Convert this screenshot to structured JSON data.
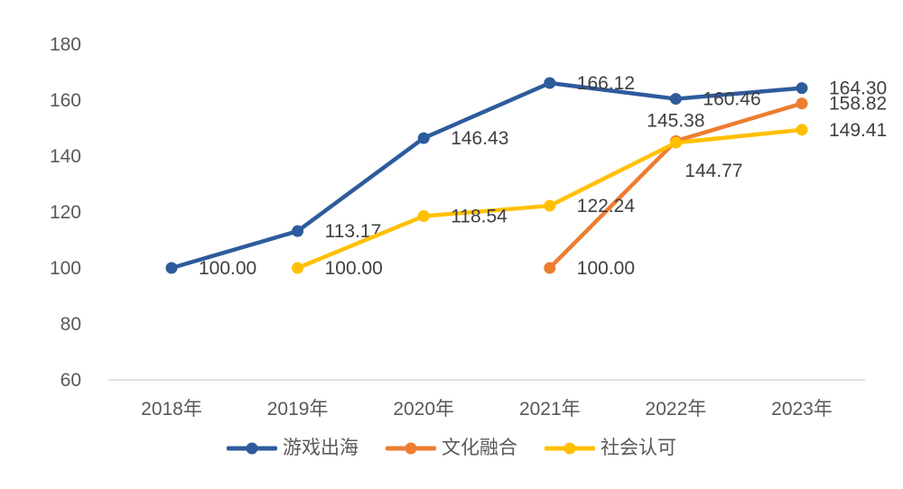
{
  "chart_data": {
    "type": "line",
    "title": "",
    "xlabel": "",
    "ylabel": "",
    "categories": [
      "2018年",
      "2019年",
      "2020年",
      "2021年",
      "2022年",
      "2023年"
    ],
    "series": [
      {
        "name": "游戏出海",
        "color": "#2E5B9C",
        "values": [
          100.0,
          113.17,
          146.43,
          166.12,
          160.46,
          164.3
        ],
        "labels": [
          "100.00",
          "113.17",
          "146.43",
          "166.12",
          "160.46",
          "164.30"
        ],
        "label_positions": [
          "right",
          "right",
          "right",
          "right",
          "right",
          "right"
        ]
      },
      {
        "name": "文化融合",
        "color": "#ED7D31",
        "values": [
          null,
          null,
          null,
          100.0,
          145.38,
          158.82
        ],
        "labels": [
          null,
          null,
          null,
          "100.00",
          "145.38",
          "158.82"
        ],
        "label_positions": [
          null,
          null,
          null,
          "right",
          "above",
          "right"
        ]
      },
      {
        "name": "社会认可",
        "color": "#FFC000",
        "values": [
          null,
          100.0,
          118.54,
          122.24,
          144.77,
          149.41
        ],
        "labels": [
          null,
          "100.00",
          "118.54",
          "122.24",
          "144.77",
          "149.41"
        ],
        "label_positions": [
          null,
          "right",
          "right",
          "right",
          "below-right",
          "right"
        ]
      }
    ],
    "y_ticks": [
      60,
      80,
      100,
      120,
      140,
      160,
      180
    ],
    "ylim": [
      60,
      180
    ],
    "grid": false,
    "legend_position": "bottom",
    "colors": {
      "axis_line": "#D9D9D9",
      "tick_text": "#595959",
      "data_label_text": "#404040",
      "background": "#FFFFFF"
    }
  }
}
